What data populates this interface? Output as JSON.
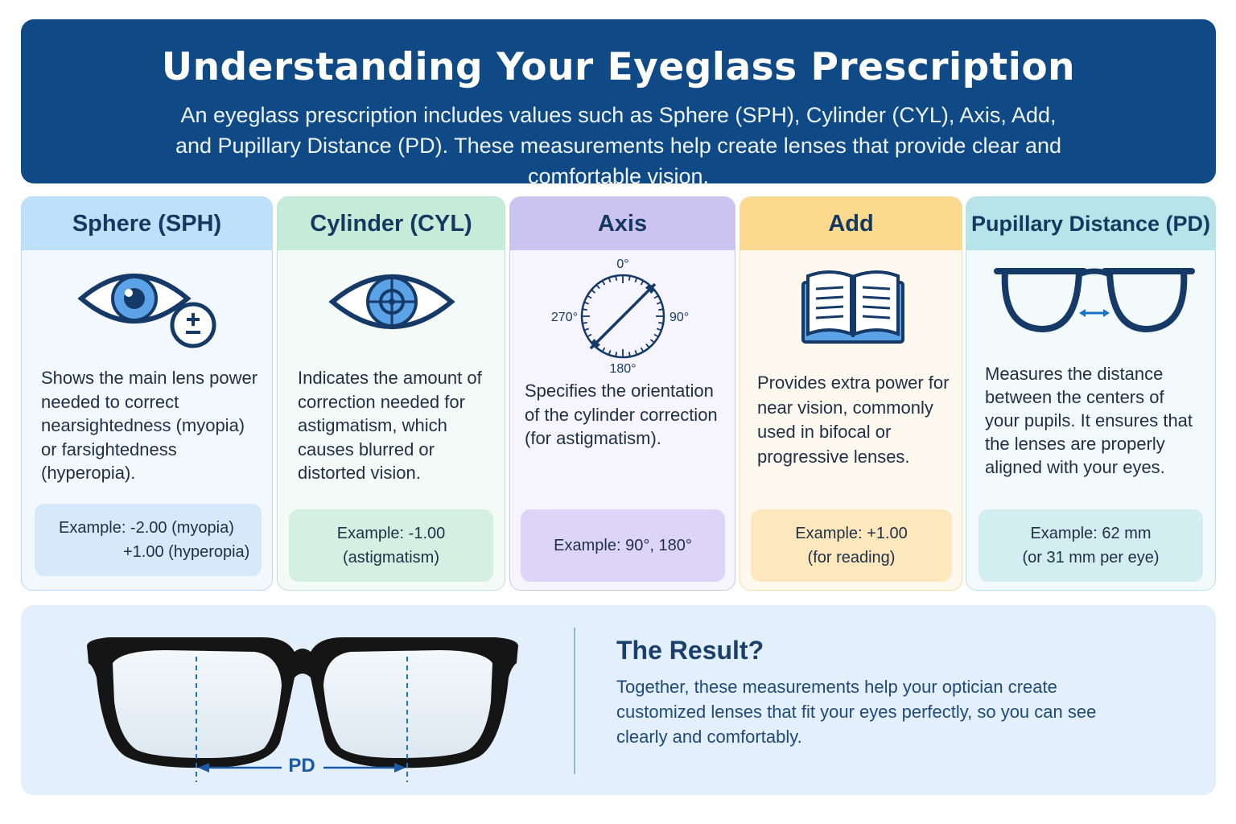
{
  "header": {
    "title": "Understanding Your Eyeglass Prescription",
    "subtitle": "An eyeglass prescription includes values such as Sphere (SPH), Cylinder (CYL), Axis, Add, and Pupillary Distance (PD). These measurements help create lenses that provide clear and comfortable vision."
  },
  "cards": [
    {
      "title": "Sphere (SPH)",
      "icon": "eye-plus-minus-icon",
      "description": "Shows the main lens power needed to correct nearsightedness (myopia) or farsightedness (hyperopia).",
      "example_line1": "Example: -2.00 (myopia)",
      "example_line2": "+1.00 (hyperopia)",
      "color": "#bfe0fa"
    },
    {
      "title": "Cylinder (CYL)",
      "icon": "eye-crosshair-icon",
      "description": "Indicates the amount of correction needed for astigmatism, which causes blurred or distorted vision.",
      "example_line1": "Example: -1.00",
      "example_line2": "(astigmatism)",
      "color": "#c6ecd9"
    },
    {
      "title": "Axis",
      "icon": "axis-dial-icon",
      "dial_labels": {
        "top": "0°",
        "right": "90°",
        "bottom": "180°",
        "left": "270°"
      },
      "description": "Specifies the orientation of the cylinder correction (for astigmatism).",
      "example_line1": "Example: 90°, 180°",
      "color": "#cbc3f0"
    },
    {
      "title": "Add",
      "icon": "open-book-icon",
      "description": "Provides extra power for near vision, commonly used in bifocal or progressive lenses.",
      "example_line1": "Example: +1.00",
      "example_line2": "(for reading)",
      "color": "#fbd98e"
    },
    {
      "title": "Pupillary Distance (PD)",
      "icon": "glasses-distance-icon",
      "description": "Measures the distance between the centers of your pupils. It ensures that the lenses are properly aligned with your eyes.",
      "example_line1": "Example: 62 mm",
      "example_line2": "(or 31 mm per eye)",
      "color": "#b8e4e9"
    }
  ],
  "result": {
    "title": "The Result?",
    "text": "Together, these measurements help your optician create customized lenses that fit your eyes perfectly, so you can see clearly and comfortably.",
    "pd_label": "PD"
  },
  "colors": {
    "header_bg": "#0f4a86",
    "accent_blue": "#1a5aa6",
    "dark_navy": "#14385f"
  }
}
